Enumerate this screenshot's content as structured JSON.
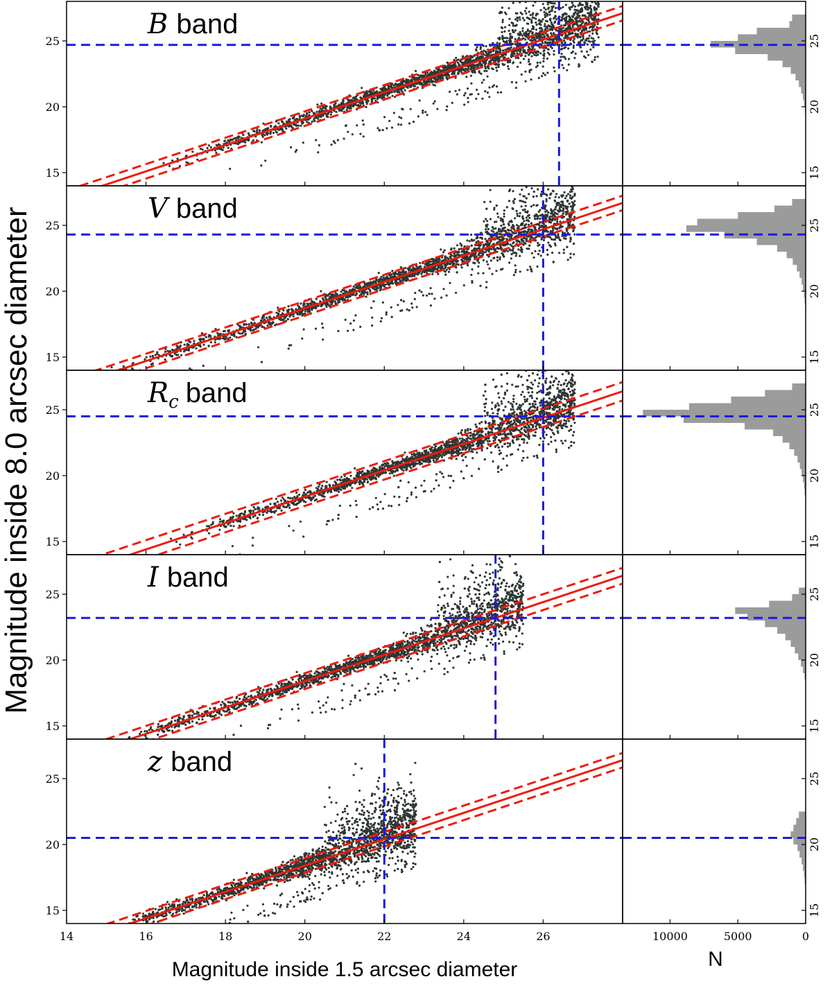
{
  "figure": {
    "ylabel": "Magnitude inside 8.0 arcsec diameter",
    "xlabel": "Magnitude inside 1.5 arcsec diameter",
    "hist_xlabel": "N"
  },
  "chart_data": [
    {
      "type": "scatter",
      "band_letter": "B",
      "band_sub": "",
      "band_word": "band",
      "xlim": [
        14,
        28
      ],
      "ylim": [
        14,
        28
      ],
      "x_ticks": [
        14,
        16,
        18,
        20,
        22,
        24,
        26
      ],
      "y_ticks": [
        15,
        20,
        25
      ],
      "x_limit": 26.4,
      "y_limit": 24.7,
      "slope": 1.0,
      "intercept": -0.9,
      "band_offset": 0.55,
      "point_color": "#2f3633",
      "fit_color": "#ee1c0e",
      "limit_color": "#1a1adf",
      "scatter": {
        "x_start": 16.2,
        "x_end": 27.4,
        "faint_cloud_y_max": 28.0,
        "approx_points": 14000
      },
      "histogram": {
        "bin_width": 0.5,
        "bin_starts": [
          27.5,
          27.0,
          26.5,
          26.0,
          25.5,
          25.0,
          24.5,
          24.0,
          23.5,
          23.0,
          22.5,
          22.0,
          21.5,
          21.0,
          20.5,
          20.0,
          19.5
        ],
        "counts": [
          0,
          0,
          1000,
          1200,
          3600,
          5000,
          7000,
          5200,
          2800,
          1700,
          1100,
          750,
          500,
          330,
          200,
          120,
          60
        ]
      }
    },
    {
      "type": "scatter",
      "band_letter": "V",
      "band_sub": "",
      "band_word": "band",
      "xlim": [
        14,
        28
      ],
      "ylim": [
        14,
        28
      ],
      "x_ticks": [
        14,
        16,
        18,
        20,
        22,
        24,
        26
      ],
      "y_ticks": [
        15,
        20,
        25
      ],
      "x_limit": 26.0,
      "y_limit": 24.3,
      "slope": 1.0,
      "intercept": -1.3,
      "band_offset": 0.55,
      "point_color": "#2f3633",
      "fit_color": "#ee1c0e",
      "limit_color": "#1a1adf",
      "scatter": {
        "x_start": 14.8,
        "x_end": 26.8,
        "faint_cloud_y_max": 28.0,
        "approx_points": 16000
      },
      "histogram": {
        "bin_width": 0.5,
        "bin_starts": [
          27.5,
          27.0,
          26.5,
          26.0,
          25.5,
          25.0,
          24.5,
          24.0,
          23.5,
          23.0,
          22.5,
          22.0,
          21.5,
          21.0,
          20.5,
          20.0,
          19.5,
          19.0,
          18.5
        ],
        "counts": [
          0,
          0,
          1000,
          2300,
          5000,
          8000,
          8800,
          6000,
          3600,
          2100,
          1400,
          950,
          650,
          450,
          300,
          200,
          120,
          70,
          30
        ]
      }
    },
    {
      "type": "scatter",
      "band_letter": "R",
      "band_sub": "c",
      "band_word": "band",
      "xlim": [
        14,
        28
      ],
      "ylim": [
        14,
        28
      ],
      "x_ticks": [
        14,
        16,
        18,
        20,
        22,
        24,
        26
      ],
      "y_ticks": [
        15,
        20,
        25
      ],
      "x_limit": 26.0,
      "y_limit": 24.5,
      "slope": 1.0,
      "intercept": -1.6,
      "band_offset": 0.7,
      "point_color": "#2f3633",
      "fit_color": "#ee1c0e",
      "limit_color": "#1a1adf",
      "scatter": {
        "x_start": 16.4,
        "x_end": 26.8,
        "faint_cloud_y_max": 28.0,
        "approx_points": 18000
      },
      "histogram": {
        "bin_width": 0.5,
        "bin_starts": [
          27.5,
          27.0,
          26.5,
          26.0,
          25.5,
          25.0,
          24.5,
          24.0,
          23.5,
          23.0,
          22.5,
          22.0,
          21.5,
          21.0,
          20.5,
          20.0,
          19.5,
          19.0,
          18.5,
          18.0
        ],
        "counts": [
          0,
          0,
          1000,
          3000,
          5500,
          8600,
          12000,
          9000,
          4500,
          2400,
          1700,
          1200,
          850,
          600,
          430,
          300,
          200,
          120,
          70,
          30
        ]
      }
    },
    {
      "type": "scatter",
      "band_letter": "I",
      "band_sub": "",
      "band_word": "band",
      "xlim": [
        14,
        28
      ],
      "ylim": [
        14,
        28
      ],
      "x_ticks": [
        14,
        16,
        18,
        20,
        22,
        24,
        26
      ],
      "y_ticks": [
        15,
        20,
        25
      ],
      "x_limit": 24.8,
      "y_limit": 23.2,
      "slope": 1.0,
      "intercept": -1.6,
      "band_offset": 0.6,
      "point_color": "#2f3633",
      "fit_color": "#ee1c0e",
      "limit_color": "#1a1adf",
      "scatter": {
        "x_start": 14.8,
        "x_end": 25.5,
        "faint_cloud_y_max": 28.0,
        "approx_points": 15000
      },
      "histogram": {
        "bin_width": 0.5,
        "bin_starts": [
          27.5,
          27.0,
          26.5,
          26.0,
          25.5,
          25.0,
          24.5,
          24.0,
          23.5,
          23.0,
          22.5,
          22.0,
          21.5,
          21.0,
          20.5,
          20.0,
          19.5,
          19.0,
          18.5
        ],
        "counts": [
          0,
          0,
          0,
          0,
          0,
          500,
          1000,
          2700,
          5200,
          4300,
          3000,
          2100,
          1500,
          1100,
          800,
          550,
          350,
          200,
          80
        ]
      }
    },
    {
      "type": "scatter",
      "band_letter": "z",
      "band_sub": "",
      "band_word": "band",
      "xlim": [
        14,
        28
      ],
      "ylim": [
        14,
        28
      ],
      "x_ticks": [
        14,
        16,
        18,
        20,
        22,
        24,
        26
      ],
      "y_ticks": [
        15,
        20,
        25
      ],
      "x_limit": 22.0,
      "y_limit": 20.5,
      "slope": 1.0,
      "intercept": -1.6,
      "band_offset": 0.55,
      "point_color": "#2f3633",
      "fit_color": "#ee1c0e",
      "limit_color": "#1a1adf",
      "scatter": {
        "x_start": 14.8,
        "x_end": 22.8,
        "faint_cloud_y_max": 26.5,
        "approx_points": 9000
      },
      "histogram": {
        "bin_width": 0.5,
        "bin_starts": [
          22.0,
          21.5,
          21.0,
          20.5,
          20.0,
          19.5,
          19.0,
          18.5,
          18.0,
          17.5,
          17.0,
          16.5
        ],
        "counts": [
          500,
          700,
          900,
          1100,
          900,
          600,
          450,
          300,
          200,
          120,
          70,
          30
        ]
      }
    }
  ],
  "histogram_axis": {
    "xlim_reversed": [
      13500,
      0
    ],
    "x_ticks": [
      10000,
      5000,
      0
    ],
    "bar_color": "#9b9b9b"
  }
}
